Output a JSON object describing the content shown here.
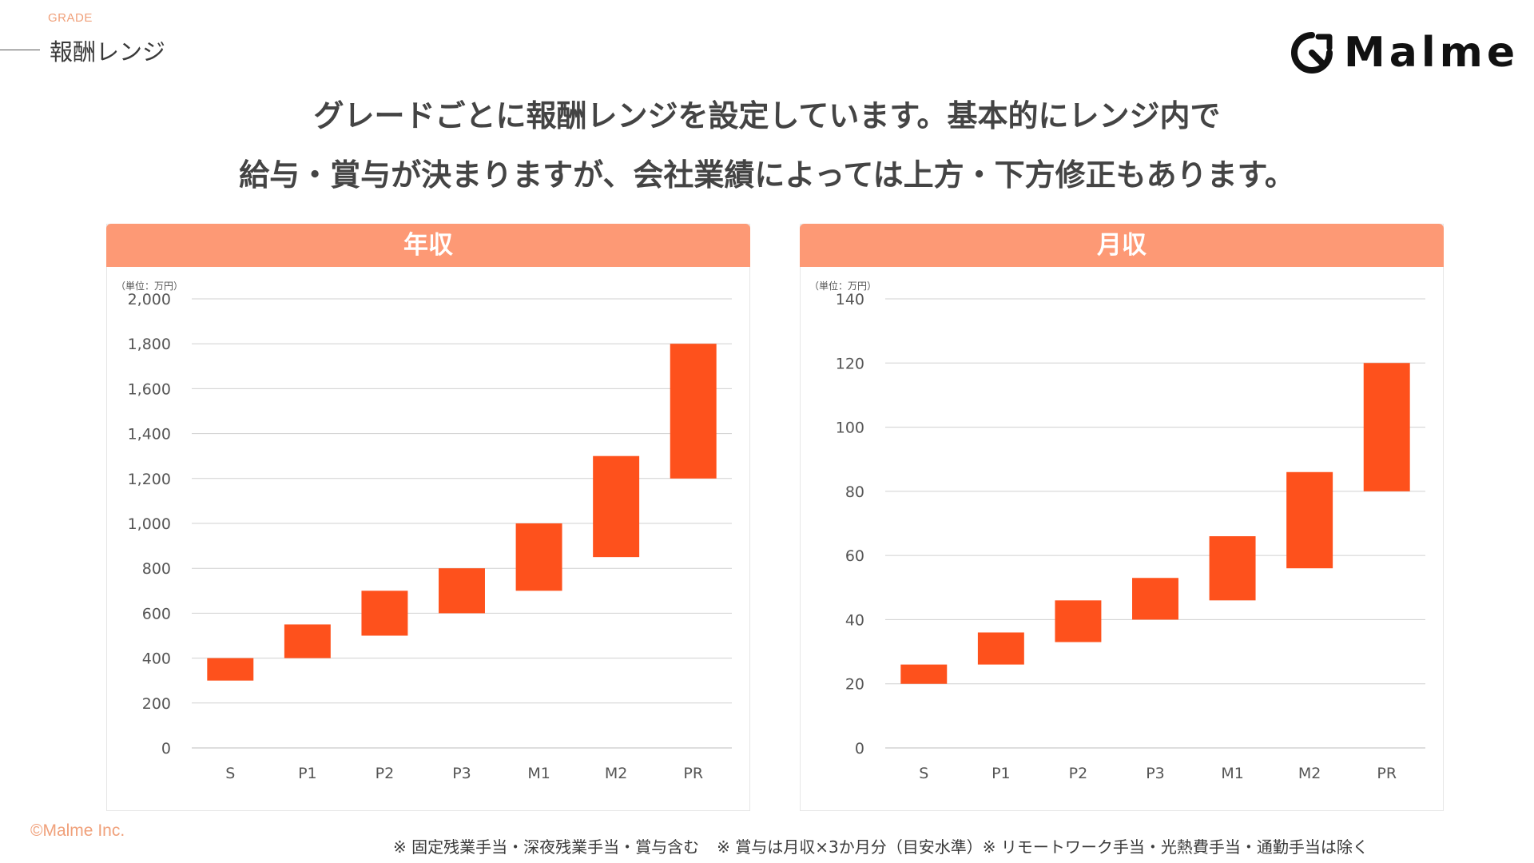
{
  "header": {
    "section_label": "GRADE",
    "section_title": "報酬レンジ",
    "logo_text": "Malme"
  },
  "headline": {
    "line1": "グレードごとに報酬レンジを設定しています。基本的にレンジ内で",
    "line2": "給与・賞与が決まりますが、会社業績によっては上方・下方修正もあります。"
  },
  "chart_data": [
    {
      "type": "bar",
      "title": "年収",
      "unit_label": "（単位：万円）",
      "categories": [
        "S",
        "P1",
        "P2",
        "P3",
        "M1",
        "M2",
        "PR"
      ],
      "ranges": [
        [
          300,
          400
        ],
        [
          400,
          550
        ],
        [
          500,
          700
        ],
        [
          600,
          800
        ],
        [
          700,
          1000
        ],
        [
          850,
          1300
        ],
        [
          1200,
          1800
        ]
      ],
      "ylim": [
        0,
        2000
      ],
      "yticks": [
        0,
        200,
        400,
        600,
        800,
        1000,
        1200,
        1400,
        1600,
        1800,
        2000
      ],
      "ytick_labels": [
        "0",
        "200",
        "400",
        "600",
        "800",
        "1,000",
        "1,200",
        "1,400",
        "1,600",
        "1,800",
        "2,000"
      ],
      "grid": true,
      "bar_color": "#fe511c"
    },
    {
      "type": "bar",
      "title": "月収",
      "unit_label": "（単位：万円）",
      "categories": [
        "S",
        "P1",
        "P2",
        "P3",
        "M1",
        "M2",
        "PR"
      ],
      "ranges": [
        [
          20,
          26
        ],
        [
          26,
          36
        ],
        [
          33,
          46
        ],
        [
          40,
          53
        ],
        [
          46,
          66
        ],
        [
          56,
          86
        ],
        [
          80,
          120
        ]
      ],
      "ylim": [
        0,
        140
      ],
      "yticks": [
        0,
        20,
        40,
        60,
        80,
        100,
        120,
        140
      ],
      "ytick_labels": [
        "0",
        "20",
        "40",
        "60",
        "80",
        "100",
        "120",
        "140"
      ],
      "grid": true,
      "bar_color": "#fe511c"
    }
  ],
  "footer": {
    "copyright": "©Malme Inc.",
    "notes": [
      "※ 固定残業手当・深夜残業手当・賞与含む",
      "※ 賞与は月収×3か月分（目安水準）※ リモートワーク手当・光熱費手当・通勤手当は除く"
    ]
  }
}
